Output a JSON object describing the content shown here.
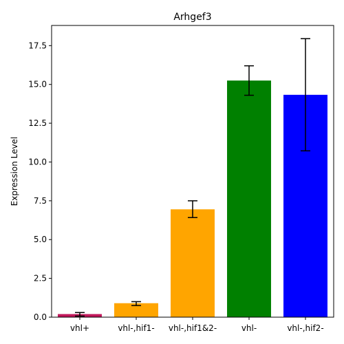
{
  "chart_data": {
    "type": "bar",
    "title": "Arhgef3",
    "xlabel": "",
    "ylabel": "Expression Level",
    "categories": [
      "vhl+",
      "vhl-,hif1-",
      "vhl-,hif1&2-",
      "vhl-",
      "vhl-,hif2-"
    ],
    "values": [
      0.2,
      0.9,
      6.95,
      15.25,
      14.33
    ],
    "error_low": [
      0.07,
      0.75,
      6.42,
      14.3,
      10.72
    ],
    "error_high": [
      0.3,
      1.0,
      7.5,
      16.2,
      17.95
    ],
    "colors": [
      "#c2185b",
      "#ffa500",
      "#ffa500",
      "#008000",
      "#0000ff"
    ],
    "ylim": [
      0,
      18.8
    ],
    "yticks": [
      0.0,
      2.5,
      5.0,
      7.5,
      10.0,
      12.5,
      15.0,
      17.5
    ],
    "ytick_labels": [
      "0.0",
      "2.5",
      "5.0",
      "7.5",
      "10.0",
      "12.5",
      "15.0",
      "17.5"
    ],
    "grid": false,
    "legend": "none"
  }
}
